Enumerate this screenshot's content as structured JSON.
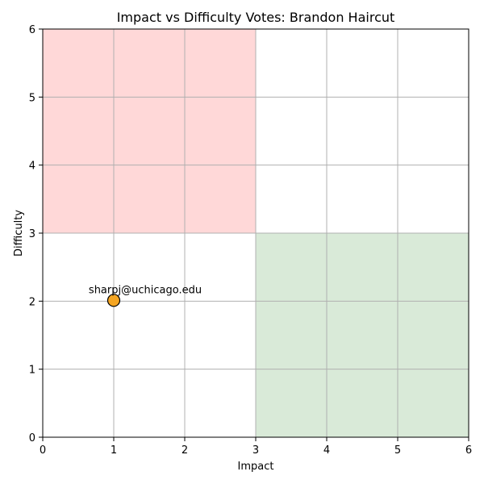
{
  "chart_data": {
    "type": "scatter",
    "title": "Impact vs Difficulty Votes: Brandon Haircut",
    "xlabel": "Impact",
    "ylabel": "Difficulty",
    "xlim": [
      0,
      6
    ],
    "ylim": [
      0,
      6
    ],
    "xticks": [
      "0",
      "1",
      "2",
      "3",
      "4",
      "5",
      "6"
    ],
    "yticks": [
      "0",
      "1",
      "2",
      "3",
      "4",
      "5",
      "6"
    ],
    "grid": true,
    "regions": [
      {
        "x": [
          0,
          3
        ],
        "y": [
          3,
          6
        ],
        "color": "#ffd8d8"
      },
      {
        "x": [
          3,
          6
        ],
        "y": [
          0,
          3
        ],
        "color": "#d9ead8"
      }
    ],
    "points": [
      {
        "x": 1,
        "y": 2,
        "label": "sharpj@uchicago.edu",
        "color": "#f5a623"
      }
    ]
  }
}
